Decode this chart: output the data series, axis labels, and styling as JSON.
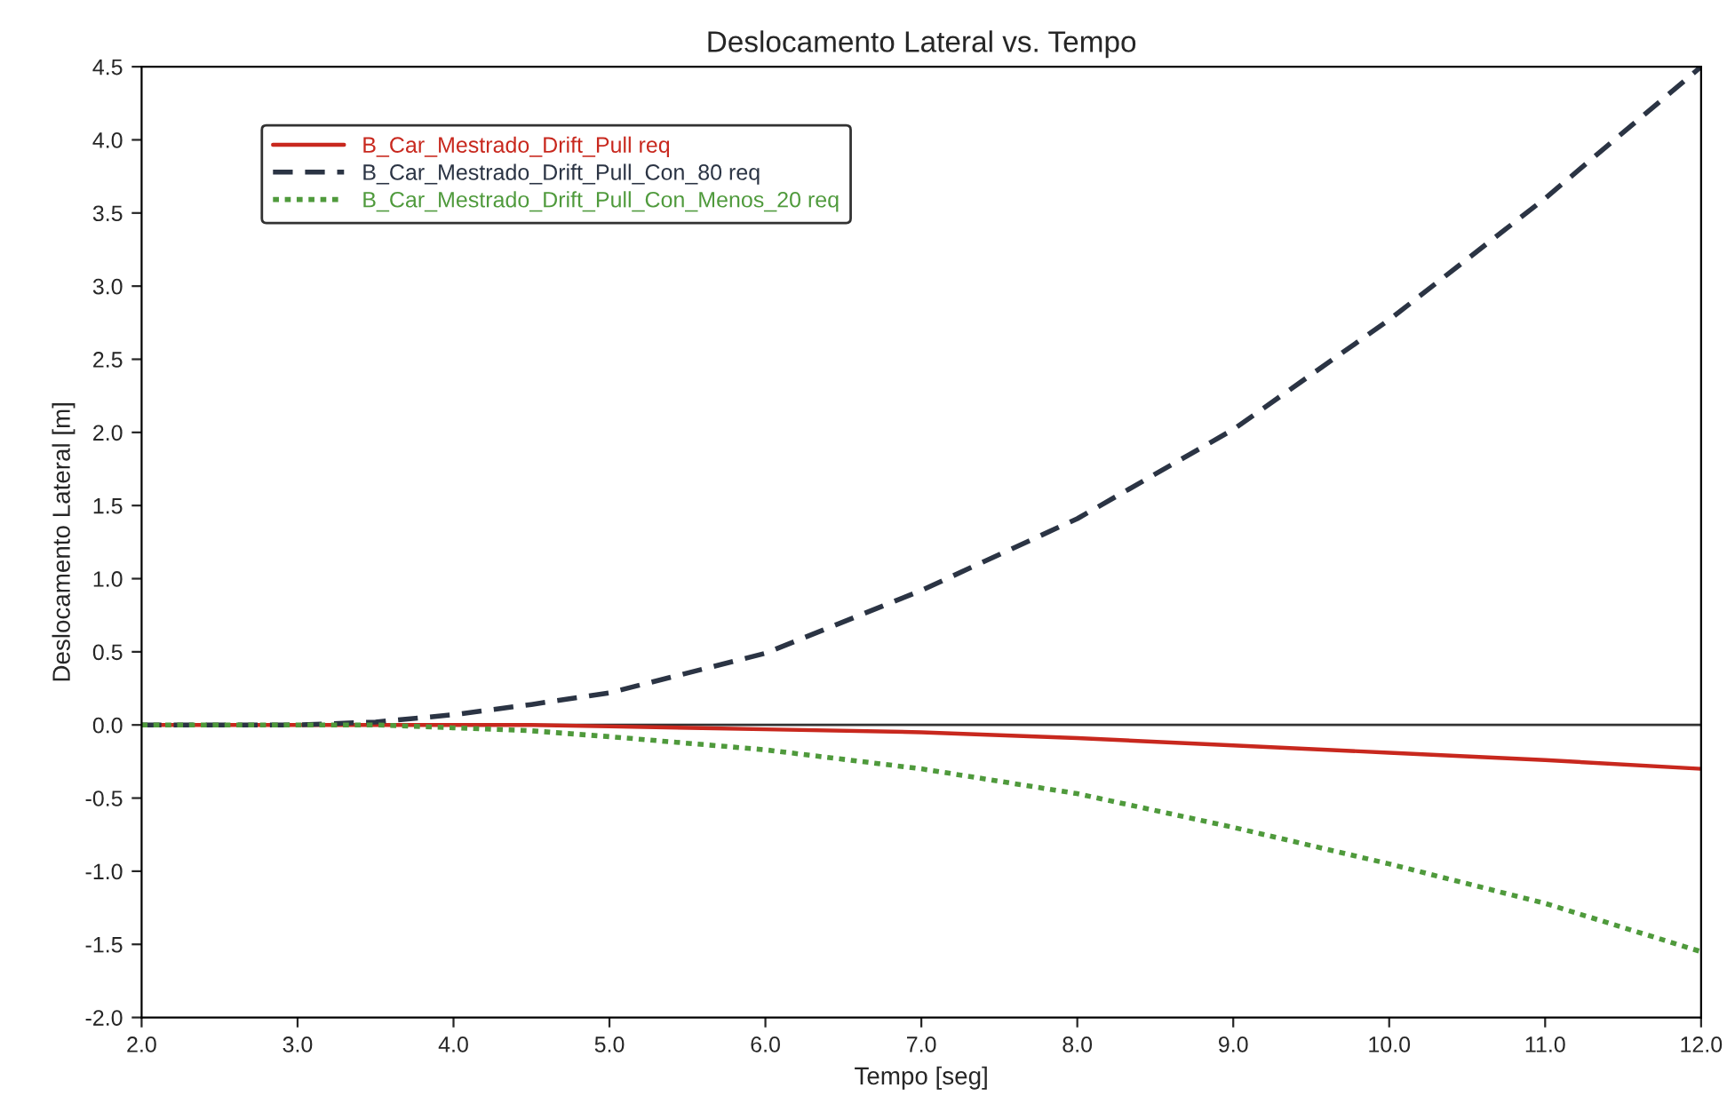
{
  "chart_data": {
    "type": "line",
    "title": "Deslocamento Lateral vs. Tempo",
    "xlabel": "Tempo [seg]",
    "ylabel": "Deslocamento Lateral [m]",
    "x": [
      2.0,
      3.0,
      3.5,
      4.0,
      4.5,
      5.0,
      6.0,
      7.0,
      8.0,
      9.0,
      10.0,
      11.0,
      12.0
    ],
    "series": [
      {
        "name": "B_Car_Mestrado_Drift_Pull req",
        "color": "#c8281e",
        "line_style": "solid",
        "values": [
          0.0,
          0.0,
          0.0,
          0.0,
          0.0,
          -0.01,
          -0.03,
          -0.05,
          -0.09,
          -0.14,
          -0.19,
          -0.24,
          -0.3
        ]
      },
      {
        "name": "B_Car_Mestrado_Drift_Pull_Con_80 req",
        "color": "#2b3444",
        "line_style": "dashed",
        "values": [
          0.0,
          0.0,
          0.02,
          0.07,
          0.14,
          0.22,
          0.49,
          0.92,
          1.41,
          2.02,
          2.77,
          3.6,
          4.5
        ]
      },
      {
        "name": "B_Car_Mestrado_Drift_Pull_Con_Menos_20 req",
        "color": "#4f9a3c",
        "line_style": "dotted",
        "values": [
          0.0,
          0.0,
          0.0,
          -0.02,
          -0.04,
          -0.08,
          -0.17,
          -0.3,
          -0.47,
          -0.7,
          -0.95,
          -1.22,
          -1.55
        ]
      }
    ],
    "xlim": [
      2.0,
      12.0
    ],
    "xticks": [
      {
        "value": 2,
        "label": "2.0"
      },
      {
        "value": 3,
        "label": "3.0"
      },
      {
        "value": 4,
        "label": "4.0"
      },
      {
        "value": 5,
        "label": "5.0"
      },
      {
        "value": 6,
        "label": "6.0"
      },
      {
        "value": 7,
        "label": "7.0"
      },
      {
        "value": 8,
        "label": "8.0"
      },
      {
        "value": 9,
        "label": "9.0"
      },
      {
        "value": 10,
        "label": "10.0"
      },
      {
        "value": 11,
        "label": "11.0"
      },
      {
        "value": 12,
        "label": "12.0"
      }
    ],
    "ylim": [
      -2.0,
      4.5
    ],
    "yticks": [
      {
        "value": -2,
        "label": "-2.0"
      },
      -1.5,
      {
        "value": -1,
        "label": "-1.0"
      },
      -0.5,
      {
        "value": 0,
        "label": "0.0"
      },
      0.5,
      {
        "value": 1,
        "label": "1.0"
      },
      1.5,
      {
        "value": 2,
        "label": "2.0"
      },
      2.5,
      {
        "value": 3,
        "label": "3.0"
      },
      3.5,
      {
        "value": 4,
        "label": "4.0"
      },
      4.5
    ],
    "ref_lines": [
      {
        "axis": "y",
        "value": 0.0,
        "color": "#333333"
      }
    ],
    "legend": "top left",
    "grid": false
  }
}
